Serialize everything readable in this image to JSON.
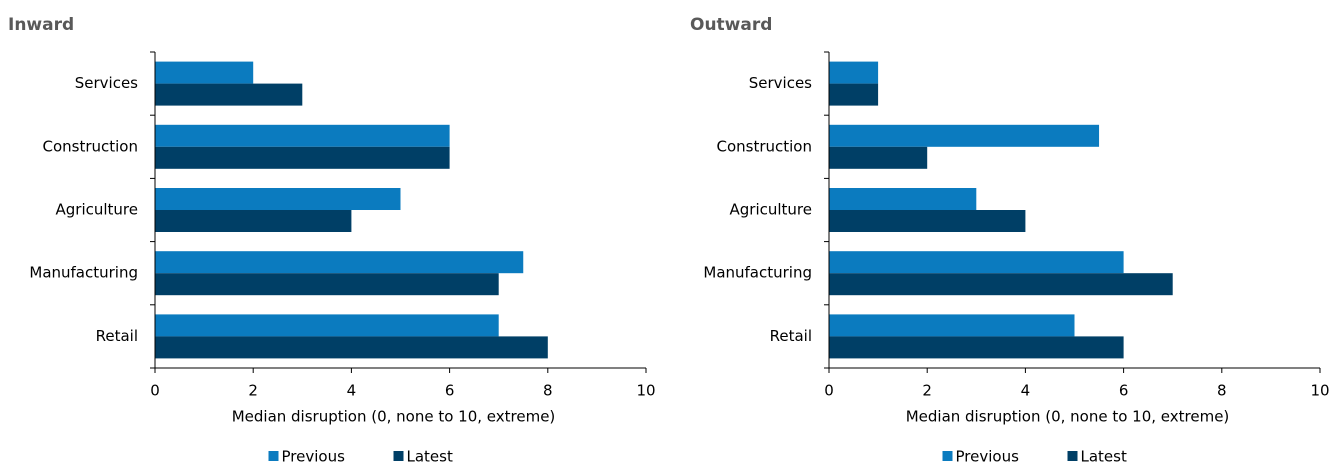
{
  "chart_data": [
    {
      "type": "bar",
      "title": "Inward",
      "xlabel": "Median disruption (0, none to 10, extreme)",
      "categories": [
        "Services",
        "Construction",
        "Agriculture",
        "Manufacturing",
        "Retail"
      ],
      "series": [
        {
          "name": "Previous",
          "color": "#0b7bbf",
          "values": [
            2,
            6,
            5,
            7.5,
            7
          ]
        },
        {
          "name": "Latest",
          "color": "#003f66",
          "values": [
            3,
            6,
            4,
            7,
            8
          ]
        }
      ],
      "xlim": [
        0,
        10
      ],
      "xticks": [
        0,
        2,
        4,
        6,
        8,
        10
      ]
    },
    {
      "type": "bar",
      "title": "Outward",
      "xlabel": "Median disruption (0, none to 10, extreme)",
      "categories": [
        "Services",
        "Construction",
        "Agriculture",
        "Manufacturing",
        "Retail"
      ],
      "series": [
        {
          "name": "Previous",
          "color": "#0b7bbf",
          "values": [
            1,
            5.5,
            3,
            6,
            5
          ]
        },
        {
          "name": "Latest",
          "color": "#003f66",
          "values": [
            1,
            2,
            4,
            7,
            6
          ]
        }
      ],
      "xlim": [
        0,
        10
      ],
      "xticks": [
        0,
        2,
        4,
        6,
        8,
        10
      ]
    }
  ]
}
